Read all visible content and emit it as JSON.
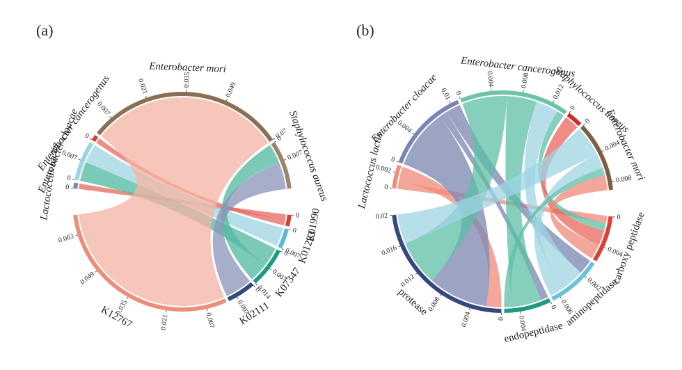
{
  "chart_data": [
    {
      "type": "chord",
      "label": "(a)",
      "sectors": [
        {
          "name": "Lactococcus lactis",
          "color": "#7b86b0",
          "italic": true,
          "ticks": [
            0
          ]
        },
        {
          "name": "Enterobacter cloacae",
          "color": "#9dd4e3",
          "italic": true,
          "ticks": [
            0,
            0.007
          ]
        },
        {
          "name": "Enterobacter cancerogenus",
          "color": "#d9403a",
          "italic": true,
          "ticks": [
            0
          ]
        },
        {
          "name": "Enterobacter mori",
          "color": "#8b6f55",
          "italic": true,
          "ticks": [
            0.007,
            0.021,
            0.035,
            0.049,
            0.07
          ]
        },
        {
          "name": "Staphylococcus aureus",
          "color": "#9c8468",
          "italic": true,
          "ticks": [
            0,
            0.007
          ]
        },
        {
          "name": "K01990",
          "color": "#d9403a",
          "italic": false,
          "ticks": [
            0
          ]
        },
        {
          "name": "K01223",
          "color": "#5bb8d4",
          "italic": false,
          "ticks": [
            0,
            0.007
          ]
        },
        {
          "name": "K07347",
          "color": "#1f9a80",
          "italic": false,
          "ticks": [
            0,
            0.007,
            0.014
          ]
        },
        {
          "name": "K02111",
          "color": "#34477f",
          "italic": false,
          "ticks": [
            0,
            0.007
          ]
        },
        {
          "name": "K12767",
          "color": "#ec8f7a",
          "italic": false,
          "ticks": [
            0.007,
            0.021,
            0.035,
            0.049,
            0.063
          ]
        }
      ],
      "links": [
        {
          "source": "Lactococcus lactis",
          "target": "K01990",
          "value": 0.002,
          "color": "#e8675c"
        },
        {
          "source": "Enterobacter cloacae",
          "target": "K07347",
          "value": 0.007,
          "color": "#4fb8a0"
        },
        {
          "source": "Enterobacter cloacae",
          "target": "K01223",
          "value": 0.007,
          "color": "#9dd4e3"
        },
        {
          "source": "Enterobacter cancerogenus",
          "target": "K01990",
          "value": 0.002,
          "color": "#e8675c"
        },
        {
          "source": "Enterobacter mori",
          "target": "K12767",
          "value": 0.07,
          "color": "#f4b3a3"
        },
        {
          "source": "Staphylococcus aureus",
          "target": "K07347",
          "value": 0.007,
          "color": "#4fb8a0"
        },
        {
          "source": "Staphylococcus aureus",
          "target": "K02111",
          "value": 0.01,
          "color": "#8a93b8"
        }
      ]
    },
    {
      "type": "chord",
      "label": "(b)",
      "sectors": [
        {
          "name": "Lactococcus lactis",
          "color": "#ec8f7a",
          "italic": true,
          "ticks": [
            0,
            0.002
          ]
        },
        {
          "name": "Enterobacter cloacae",
          "color": "#7b86b0",
          "italic": true,
          "ticks": [
            0,
            0.004,
            0.01
          ]
        },
        {
          "name": "Enterobacter cancerogenus",
          "color": "#6cc3a9",
          "italic": true,
          "ticks": [
            0,
            0.004,
            0.008,
            0.012
          ]
        },
        {
          "name": "Staphylococcus aureus",
          "color": "#c9302c",
          "italic": true,
          "ticks": [
            0
          ]
        },
        {
          "name": "Enterobacter mori",
          "color": "#7d5f45",
          "italic": true,
          "ticks": [
            0,
            0.004,
            0.008
          ]
        },
        {
          "name": "carboxy peptidase",
          "color": "#d9403a",
          "italic": false,
          "ticks": [
            0,
            0.004
          ]
        },
        {
          "name": "aminopeptidase",
          "color": "#6cc0da",
          "italic": false,
          "ticks": [
            0.002,
            0.006
          ]
        },
        {
          "name": "endopeptidase",
          "color": "#1f9a80",
          "italic": false,
          "ticks": [
            0,
            0.004
          ]
        },
        {
          "name": "protease",
          "color": "#34477f",
          "italic": false,
          "ticks": [
            0,
            0.004,
            0.008,
            0.012,
            0.016,
            0.02
          ]
        }
      ],
      "links": [
        {
          "source": "Lactococcus lactis",
          "target": "carboxy peptidase",
          "value": 0.001,
          "color": "#ef8a7a"
        },
        {
          "source": "Lactococcus lactis",
          "target": "protease",
          "value": 0.002,
          "color": "#ef8a7a"
        },
        {
          "source": "Enterobacter cloacae",
          "target": "protease",
          "value": 0.008,
          "color": "#7b86b0"
        },
        {
          "source": "Enterobacter cloacae",
          "target": "endopeptidase",
          "value": 0.001,
          "color": "#7b86b0"
        },
        {
          "source": "Enterobacter cloacae",
          "target": "aminopeptidase",
          "value": 0.002,
          "color": "#7b86b0"
        },
        {
          "source": "Enterobacter cancerogenus",
          "target": "protease",
          "value": 0.006,
          "color": "#5dbfa5"
        },
        {
          "source": "Enterobacter cancerogenus",
          "target": "endopeptidase",
          "value": 0.004,
          "color": "#5dbfa5"
        },
        {
          "source": "Enterobacter cancerogenus",
          "target": "aminopeptidase",
          "value": 0.003,
          "color": "#9dd4e3"
        },
        {
          "source": "Enterobacter cancerogenus",
          "target": "carboxy peptidase",
          "value": 0.001,
          "color": "#5dbfa5"
        },
        {
          "source": "Staphylococcus aureus",
          "target": "carboxy peptidase",
          "value": 0.002,
          "color": "#e8675c"
        },
        {
          "source": "Enterobacter mori",
          "target": "protease",
          "value": 0.004,
          "color": "#9dd4e3"
        },
        {
          "source": "Enterobacter mori",
          "target": "aminopeptidase",
          "value": 0.002,
          "color": "#9dd4e3"
        },
        {
          "source": "Enterobacter mori",
          "target": "endopeptidase",
          "value": 0.001,
          "color": "#5dbfa5"
        },
        {
          "source": "Enterobacter mori",
          "target": "carboxy peptidase",
          "value": 0.002,
          "color": "#ef8a7a"
        }
      ]
    }
  ]
}
